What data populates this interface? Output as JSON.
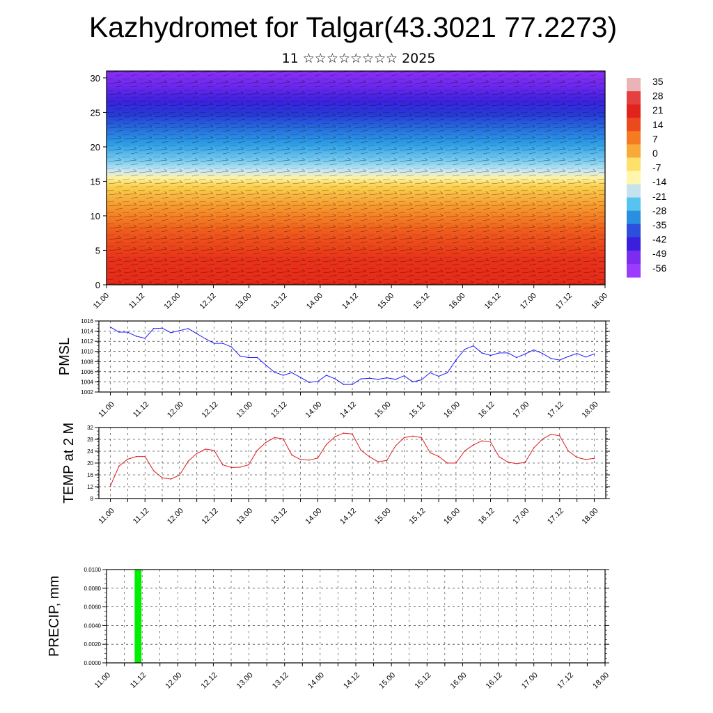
{
  "title": "Kazhydromet for Talgar(43.3021 77.2273)",
  "subtitle": "11 ☆☆☆☆☆☆☆☆ 2025",
  "colors": {
    "pmsl_line": "#1a1aff",
    "temp_line": "#e0191e",
    "precip_bar": "#00ee00",
    "colorbar": [
      "#e9b3b7",
      "#e53f3f",
      "#e2231c",
      "#ec4a1d",
      "#f47b22",
      "#f9a83a",
      "#fde16a",
      "#fff6ae",
      "#c4e3ee",
      "#57c4ef",
      "#2a8fe0",
      "#2c4fdc",
      "#3a1fdf",
      "#7b2cf0",
      "#9b3bff"
    ]
  },
  "cross_section": {
    "y_ticks": [
      "0",
      "5",
      "10",
      "15",
      "20",
      "25",
      "30"
    ],
    "x_ticks": [
      "11.00",
      "11.12",
      "12.00",
      "12.12",
      "13.00",
      "13.12",
      "14.00",
      "14.12",
      "15.00",
      "15.12",
      "16.00",
      "16.12",
      "17.00",
      "17.12",
      "18.00"
    ],
    "colorbar_labels": [
      "35",
      "28",
      "21",
      "14",
      "7",
      "0",
      "-7",
      "-14",
      "-21",
      "-28",
      "-35",
      "-42",
      "-49",
      "-56"
    ]
  },
  "chart_data": [
    {
      "type": "line",
      "ylabel": "PMSL",
      "ylim": [
        1002,
        1016
      ],
      "y_ticks": [
        "1002",
        "1004",
        "1006",
        "1008",
        "1010",
        "1012",
        "1014",
        "1016"
      ],
      "x_ticks": [
        "11.00",
        "11.12",
        "12.00",
        "12.12",
        "13.00",
        "13.12",
        "14.00",
        "14.12",
        "15.00",
        "15.12",
        "16.00",
        "16.12",
        "17.00",
        "17.12",
        "18.00"
      ],
      "x": [
        0,
        3,
        6,
        9,
        12,
        15,
        18,
        21,
        24,
        27,
        30,
        33,
        36,
        39,
        42,
        45,
        48,
        51,
        54,
        57,
        60,
        63,
        66,
        69,
        72,
        75,
        78,
        81,
        84,
        87,
        90,
        93,
        96,
        99,
        102,
        105,
        108,
        111,
        114,
        117,
        120,
        123,
        126,
        129,
        132,
        135,
        138,
        141,
        144,
        147,
        150,
        153,
        156,
        159,
        162,
        165,
        168
      ],
      "values": [
        1014.8,
        1013.8,
        1013.8,
        1013.0,
        1012.6,
        1014.5,
        1014.6,
        1013.7,
        1014.1,
        1014.5,
        1013.5,
        1012.5,
        1011.6,
        1011.6,
        1010.9,
        1009.1,
        1008.8,
        1008.8,
        1007.3,
        1005.9,
        1005.3,
        1005.8,
        1004.9,
        1003.9,
        1004.1,
        1005.3,
        1004.6,
        1003.5,
        1003.5,
        1004.6,
        1004.7,
        1004.5,
        1004.8,
        1004.5,
        1005.2,
        1004.0,
        1004.4,
        1005.8,
        1005.1,
        1005.8,
        1008.3,
        1010.4,
        1011.1,
        1009.7,
        1009.2,
        1009.7,
        1009.7,
        1008.8,
        1009.5,
        1010.3,
        1009.6,
        1008.6,
        1008.3,
        1009.0,
        1009.6,
        1008.9,
        1009.5
      ],
      "grid": true
    },
    {
      "type": "line",
      "ylabel": "TEMP at 2 M",
      "ylim": [
        8,
        32
      ],
      "y_ticks": [
        "8",
        "12",
        "16",
        "20",
        "24",
        "28",
        "32"
      ],
      "x_ticks": [
        "11.00",
        "11.12",
        "12.00",
        "12.12",
        "13.00",
        "13.12",
        "14.00",
        "14.12",
        "15.00",
        "15.12",
        "16.00",
        "16.12",
        "17.00",
        "17.12",
        "18.00"
      ],
      "x": [
        0,
        3,
        6,
        9,
        12,
        15,
        18,
        21,
        24,
        27,
        30,
        33,
        36,
        39,
        42,
        45,
        48,
        51,
        54,
        57,
        60,
        63,
        66,
        69,
        72,
        75,
        78,
        81,
        84,
        87,
        90,
        93,
        96,
        99,
        102,
        105,
        108,
        111,
        114,
        117,
        120,
        123,
        126,
        129,
        132,
        135,
        138,
        141,
        144,
        147,
        150,
        153,
        156,
        159,
        162,
        165,
        168
      ],
      "values": [
        12.2,
        19.0,
        21.3,
        22.2,
        22.2,
        17.4,
        15.0,
        14.6,
        15.9,
        20.6,
        23.2,
        24.7,
        24.3,
        19.4,
        18.5,
        18.6,
        19.4,
        24.3,
        27.0,
        28.6,
        28.2,
        22.7,
        21.2,
        21.0,
        21.7,
        26.3,
        28.9,
        30.1,
        29.8,
        24.3,
        22.1,
        20.4,
        20.9,
        25.8,
        28.6,
        29.1,
        28.6,
        23.5,
        22.2,
        20.0,
        20.0,
        24.1,
        26.1,
        27.5,
        27.1,
        22.1,
        20.3,
        19.8,
        20.2,
        25.1,
        28.1,
        29.7,
        29.2,
        24.1,
        21.9,
        21.2,
        21.6
      ],
      "grid": true
    },
    {
      "type": "bar",
      "ylabel": "PRECIP, mm",
      "ylim": [
        0,
        0.01
      ],
      "y_ticks": [
        "0.0000",
        "0.0020",
        "0.0040",
        "0.0060",
        "0.0080",
        "0.0100"
      ],
      "x_ticks": [
        "11.00",
        "11.12",
        "12.00",
        "12.12",
        "13.00",
        "13.12",
        "14.00",
        "14.12",
        "15.00",
        "15.12",
        "16.00",
        "16.12",
        "17.00",
        "17.12",
        "18.00"
      ],
      "bars": [
        {
          "x_start": 9,
          "x_end": 12,
          "value": 0.01
        }
      ],
      "grid": true
    }
  ]
}
